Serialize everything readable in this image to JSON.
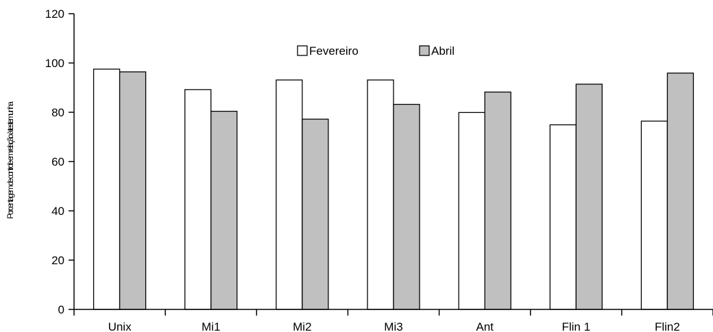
{
  "chart_data": {
    "type": "bar",
    "ylabel": "Porcentagem de controle em relação à testemunha",
    "ylim": [
      0,
      120
    ],
    "yticks": [
      0,
      20,
      40,
      60,
      80,
      100,
      120
    ],
    "grid": false,
    "legend_position": "top-center",
    "categories": [
      "Unix",
      "Mi1",
      "Mi2",
      "Mi3",
      "Ant",
      "Flin 1",
      "Flin2"
    ],
    "series": [
      {
        "name": "Fevereiro",
        "color": "#ffffff",
        "values": [
          97.5,
          89.2,
          93.1,
          93.1,
          79.9,
          74.9,
          76.4
        ]
      },
      {
        "name": "Abril",
        "color": "#c0c0c0",
        "values": [
          96.4,
          80.4,
          77.2,
          83.2,
          88.2,
          91.4,
          95.9
        ]
      }
    ]
  }
}
